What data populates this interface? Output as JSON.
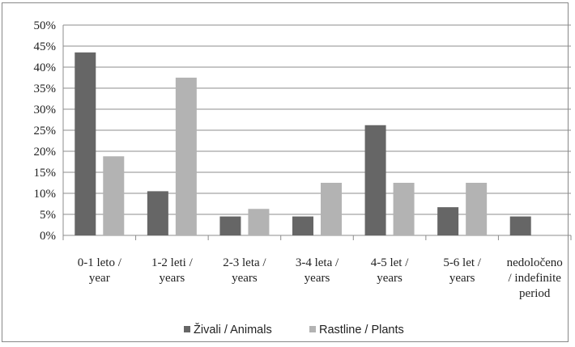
{
  "chart_data": {
    "type": "bar",
    "categories": [
      [
        "0-1 leto /",
        "year"
      ],
      [
        "1-2 leti /",
        "years"
      ],
      [
        "2-3 leta /",
        "years"
      ],
      [
        "3-4 leta /",
        "years"
      ],
      [
        "4-5 let /",
        "years"
      ],
      [
        "5-6 let /",
        "years"
      ],
      [
        "nedoločeno",
        "/ indefinite",
        "period"
      ]
    ],
    "series": [
      {
        "name": "Živali / Animals",
        "color": "#666666",
        "values": [
          43.5,
          10.5,
          4.5,
          4.5,
          26.2,
          6.7,
          4.5
        ]
      },
      {
        "name": "Rastline / Plants",
        "color": "#b3b3b3",
        "values": [
          18.8,
          37.5,
          6.3,
          12.5,
          12.5,
          12.5,
          null
        ]
      }
    ],
    "yticks": [
      "0%",
      "5%",
      "10%",
      "15%",
      "20%",
      "25%",
      "30%",
      "35%",
      "40%",
      "45%",
      "50%"
    ],
    "ylim": [
      0,
      50
    ],
    "grid": true,
    "legend_position": "bottom"
  }
}
